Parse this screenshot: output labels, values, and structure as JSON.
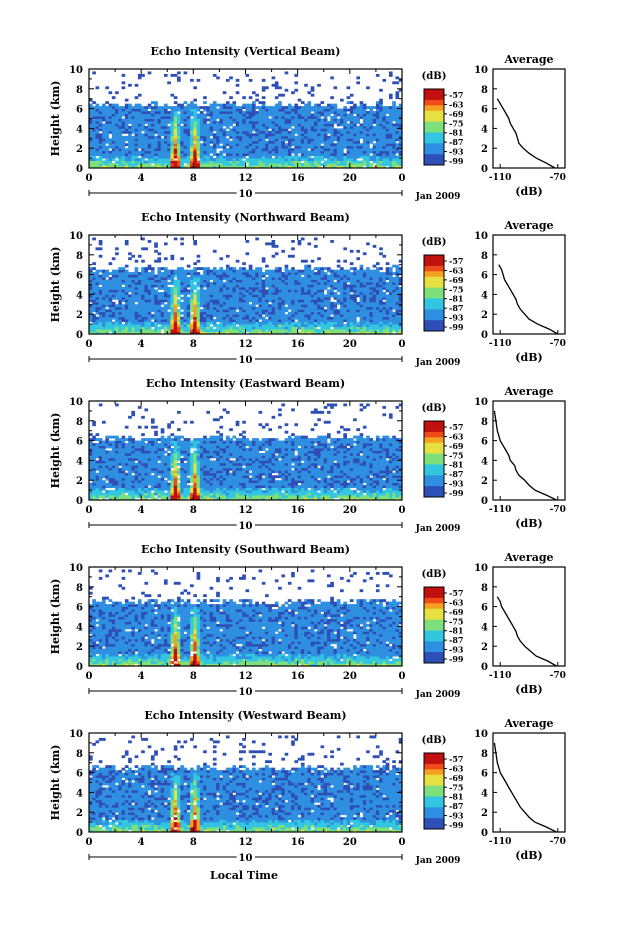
{
  "figure": {
    "xlabel_bottom": "Local Time",
    "date_label": "Jan 2009",
    "day_label": "10",
    "colorbar_unit": "(dB)",
    "colorbar_ticks": [
      "-57",
      "-63",
      "-69",
      "-75",
      "-81",
      "-87",
      "-93",
      "-99"
    ],
    "ylabel": "Height (km)",
    "avg_title": "Average",
    "avg_xlabel": "(dB)",
    "avg_xticks": [
      "-110",
      "-70"
    ]
  },
  "chart_data": [
    {
      "type": "heatmap",
      "title": "Echo Intensity (Vertical Beam)",
      "ylabel": "Height (km)",
      "xticks": [
        "0",
        "4",
        "8",
        "12",
        "16",
        "20",
        "0"
      ],
      "xlim": [
        0,
        24
      ],
      "yticks": [
        "0",
        "2",
        "4",
        "6",
        "8",
        "10"
      ],
      "ylim": [
        0,
        10
      ],
      "color_range_db": [
        -99,
        -57
      ],
      "echo_top_km": 6.3,
      "precip_peaks_hour": [
        6.5,
        8.0
      ],
      "average_profile": {
        "height_km": [
          0,
          0.5,
          1,
          1.5,
          2,
          2.5,
          3,
          3.5,
          4,
          4.5,
          5,
          5.5,
          6,
          6.5,
          7
        ],
        "db": [
          -72,
          -78,
          -85,
          -90,
          -94,
          -97,
          -98,
          -99,
          -101,
          -103,
          -104,
          -106,
          -108,
          -110,
          -112
        ]
      }
    },
    {
      "type": "heatmap",
      "title": "Echo Intensity (Northward Beam)",
      "ylabel": "Height (km)",
      "xticks": [
        "0",
        "4",
        "8",
        "12",
        "16",
        "20",
        "0"
      ],
      "xlim": [
        0,
        24
      ],
      "yticks": [
        "0",
        "2",
        "4",
        "6",
        "8",
        "10"
      ],
      "ylim": [
        0,
        10
      ],
      "color_range_db": [
        -99,
        -57
      ],
      "echo_top_km": 6.5,
      "precip_peaks_hour": [
        6.5,
        8.0
      ],
      "average_profile": {
        "height_km": [
          0,
          0.5,
          1,
          1.5,
          2,
          2.5,
          3,
          3.5,
          4,
          4.5,
          5,
          5.5,
          6,
          6.5,
          7
        ],
        "db": [
          -70,
          -76,
          -84,
          -90,
          -93,
          -96,
          -98,
          -99,
          -101,
          -103,
          -105,
          -107,
          -108,
          -109,
          -111
        ]
      }
    },
    {
      "type": "heatmap",
      "title": "Echo Intensity (Eastward Beam)",
      "ylabel": "Height (km)",
      "xticks": [
        "0",
        "4",
        "8",
        "12",
        "16",
        "20",
        "0"
      ],
      "xlim": [
        0,
        24
      ],
      "yticks": [
        "0",
        "2",
        "4",
        "6",
        "8",
        "10"
      ],
      "ylim": [
        0,
        10
      ],
      "color_range_db": [
        -99,
        -57
      ],
      "echo_top_km": 6.2,
      "precip_peaks_hour": [
        6.5,
        8.0
      ],
      "average_profile": {
        "height_km": [
          0,
          0.5,
          1,
          1.5,
          2,
          2.5,
          3,
          3.5,
          4,
          4.5,
          5,
          5.5,
          6,
          6.5,
          7,
          8,
          9
        ],
        "db": [
          -71,
          -78,
          -86,
          -90,
          -93,
          -97,
          -99,
          -100,
          -103,
          -104,
          -106,
          -108,
          -110,
          -111,
          -112,
          -113,
          -114
        ]
      }
    },
    {
      "type": "heatmap",
      "title": "Echo Intensity (Southward Beam)",
      "ylabel": "Height (km)",
      "xticks": [
        "0",
        "4",
        "8",
        "12",
        "16",
        "20",
        "0"
      ],
      "xlim": [
        0,
        24
      ],
      "yticks": [
        "0",
        "2",
        "4",
        "6",
        "8",
        "10"
      ],
      "ylim": [
        0,
        10
      ],
      "color_range_db": [
        -99,
        -57
      ],
      "echo_top_km": 6.4,
      "precip_peaks_hour": [
        6.5,
        8.0
      ],
      "average_profile": {
        "height_km": [
          0,
          0.5,
          1,
          1.5,
          2,
          2.5,
          3,
          3.5,
          4,
          4.5,
          5,
          5.5,
          6,
          6.5,
          7
        ],
        "db": [
          -71,
          -77,
          -85,
          -89,
          -93,
          -96,
          -98,
          -99,
          -101,
          -103,
          -105,
          -107,
          -109,
          -110,
          -112
        ]
      }
    },
    {
      "type": "heatmap",
      "title": "Echo Intensity (Westward Beam)",
      "ylabel": "Height (km)",
      "xticks": [
        "0",
        "4",
        "8",
        "12",
        "16",
        "20",
        "0"
      ],
      "xlim": [
        0,
        24
      ],
      "yticks": [
        "0",
        "2",
        "4",
        "6",
        "8",
        "10"
      ],
      "ylim": [
        0,
        10
      ],
      "color_range_db": [
        -99,
        -57
      ],
      "echo_top_km": 6.4,
      "precip_peaks_hour": [
        6.5,
        8.0
      ],
      "average_profile": {
        "height_km": [
          0,
          0.5,
          1,
          1.5,
          2,
          2.5,
          3,
          3.5,
          4,
          4.5,
          5,
          5.5,
          6,
          6.5,
          7,
          8,
          9
        ],
        "db": [
          -71,
          -78,
          -86,
          -90,
          -93,
          -96,
          -98,
          -100,
          -102,
          -104,
          -106,
          -108,
          -110,
          -111,
          -112,
          -113,
          -114
        ]
      }
    }
  ]
}
